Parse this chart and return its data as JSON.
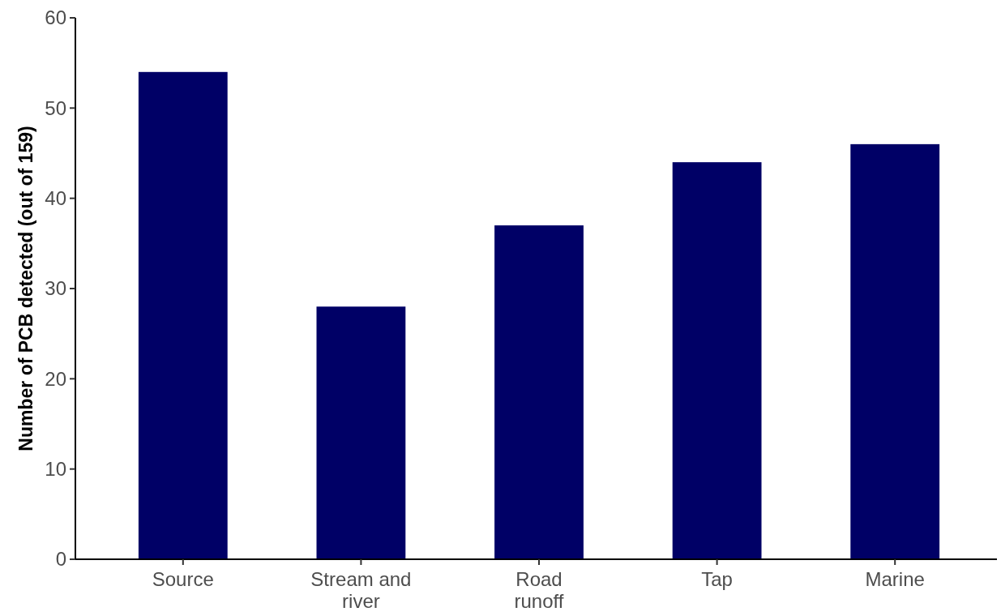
{
  "chart_data": {
    "type": "bar",
    "ylabel": "Number of PCB detected (out of 159)",
    "categories": [
      "Source",
      "Stream and\nriver",
      "Road\nrunoff",
      "Tap",
      "Marine"
    ],
    "values": [
      54,
      28,
      37,
      44,
      46
    ],
    "color": "#000066",
    "ylim": [
      0,
      60
    ],
    "yticks": [
      0,
      10,
      20,
      30,
      40,
      50,
      60
    ],
    "grid": false
  }
}
